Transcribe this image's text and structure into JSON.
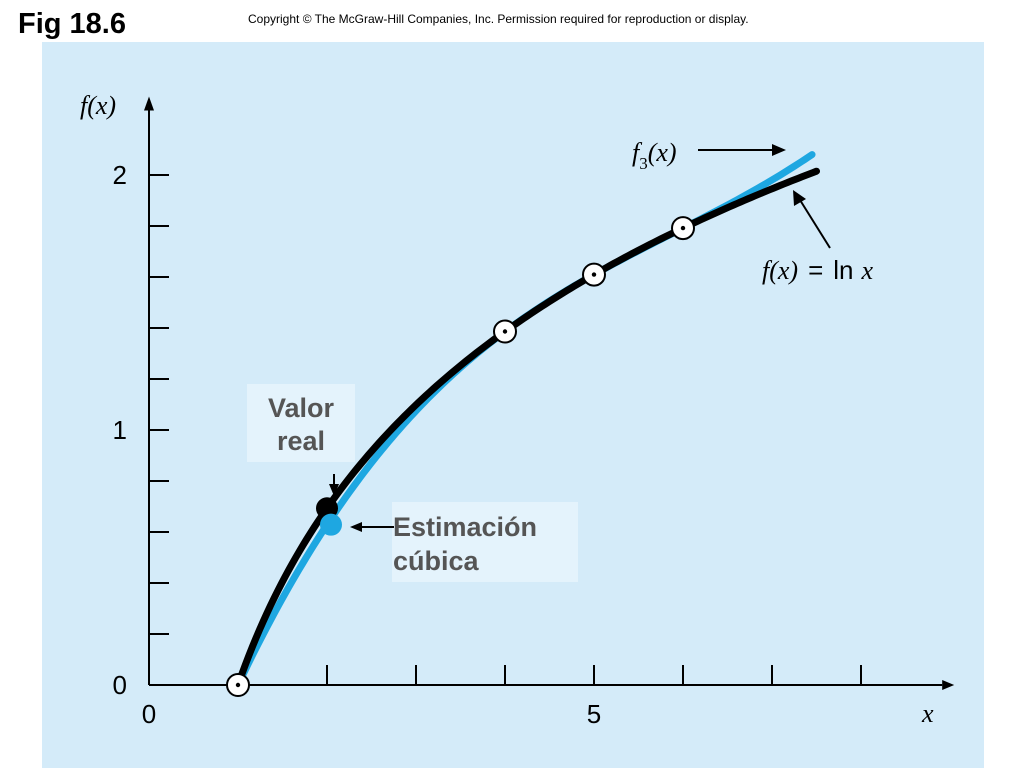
{
  "header": {
    "fig_label": "Fig 18.6",
    "copyright": "Copyright © The McGraw-Hill Companies, Inc. Permission required for reproduction or display."
  },
  "colors": {
    "panel_bg": "#d4ebf9",
    "true_curve": "#000000",
    "cubic_curve": "#1ea7e1",
    "annotation_box": "#e4f3fc",
    "annotation_text": "#555555"
  },
  "chart_data": {
    "type": "line",
    "title": "",
    "xlabel": "x",
    "ylabel": "f(x)",
    "xlim": [
      0,
      8.8
    ],
    "ylim": [
      0,
      2.3
    ],
    "x_tick_labels": [
      {
        "value": 0,
        "label": "0"
      },
      {
        "value": 5,
        "label": "5"
      }
    ],
    "x_minor_ticks": [
      2,
      3,
      4,
      5,
      6,
      7,
      8
    ],
    "y_tick_labels": [
      {
        "value": 0,
        "label": "0"
      },
      {
        "value": 1,
        "label": "1"
      },
      {
        "value": 2,
        "label": "2"
      }
    ],
    "y_minor_ticks": [
      0.2,
      0.4,
      0.6,
      0.8,
      1.0,
      1.2,
      1.4,
      1.6,
      1.8,
      2.0
    ],
    "grid": false,
    "series": [
      {
        "name": "f(x) = ln x",
        "function": "ln",
        "x_range": [
          1,
          7.5
        ],
        "color": "#000000"
      },
      {
        "name": "f3(x)",
        "function": "cubic",
        "nodes": [
          1,
          4,
          5,
          6
        ],
        "node_values": [
          0,
          1.386294,
          1.609438,
          1.791759
        ],
        "x_range": [
          1,
          7.45
        ],
        "color": "#1ea7e1"
      }
    ],
    "data_points": [
      {
        "x": 1,
        "y": 0
      },
      {
        "x": 4,
        "y": 1.386294
      },
      {
        "x": 5,
        "y": 1.609438
      },
      {
        "x": 6,
        "y": 1.791759
      }
    ],
    "evaluation_x": 2,
    "true_value": {
      "x": 2,
      "y": 0.693147
    },
    "cubic_estimate": {
      "x": 2,
      "y": 0.628769
    },
    "annotations": {
      "f3_label": {
        "main": "f",
        "sub": "3",
        "arg": "(x)"
      },
      "ln_label": {
        "lhs": "f(x)",
        "eq": "=",
        "fn": "ln",
        "var": "x"
      },
      "valor_real": [
        "Valor",
        "real"
      ],
      "estimacion": [
        "Estimación",
        "cúbica"
      ]
    }
  }
}
